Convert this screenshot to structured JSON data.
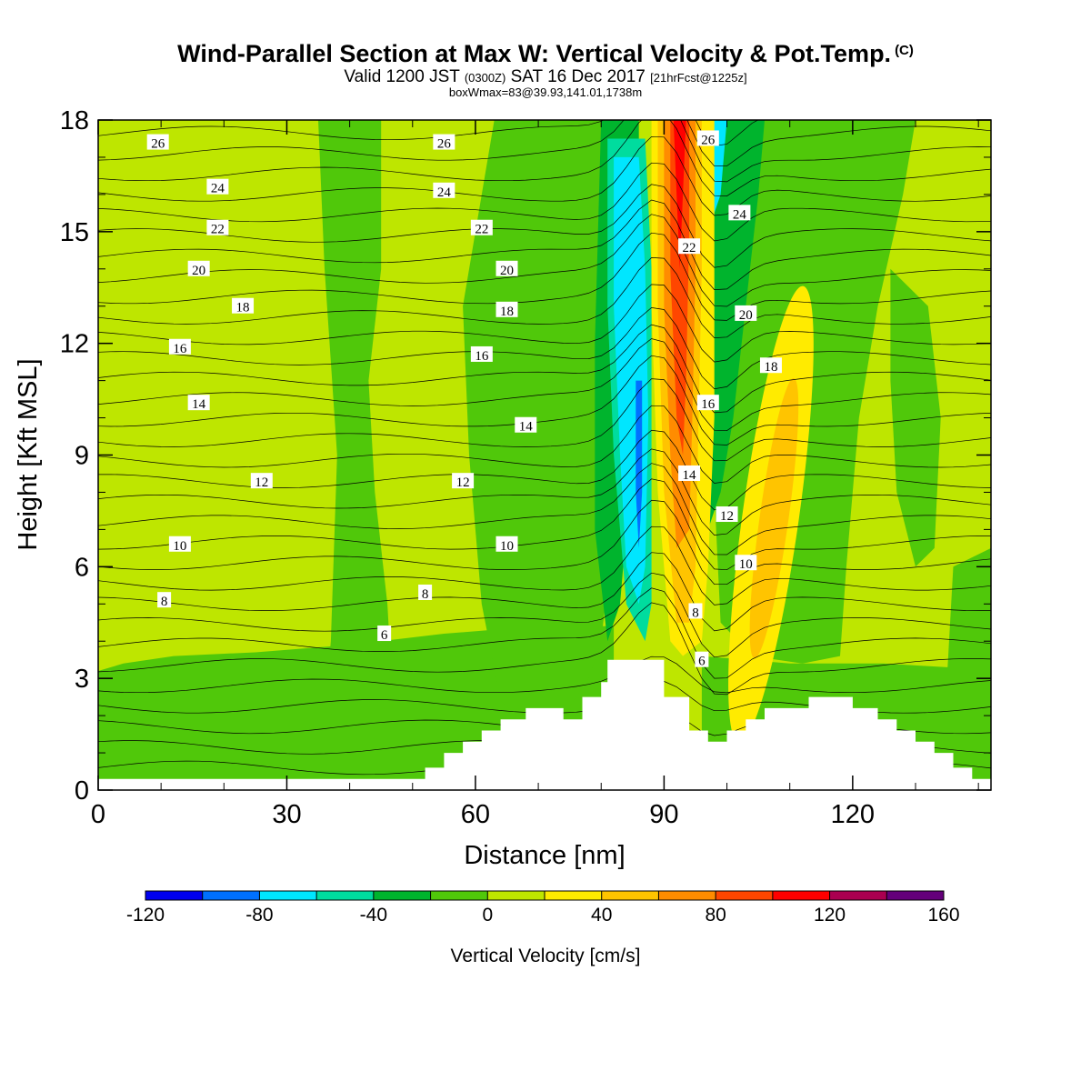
{
  "header": {
    "title": "Wind-Parallel Section at Max W: Vertical Velocity & Pot.Temp.",
    "copyright_mark": "(C)",
    "valid_prefix": "Valid 1200 JST",
    "valid_utc": "(0300Z)",
    "valid_date": "SAT 16 Dec 2017",
    "forecast_tag": "[21hrFcst@1225z]",
    "box_wmax": "boxWmax=83@39.93,141.01,1738m"
  },
  "chart_data": {
    "type": "heatmap",
    "xlabel": "Distance [nm]",
    "ylabel": "Height [Kft MSL]",
    "xlim": [
      0,
      142
    ],
    "ylim": [
      0,
      18
    ],
    "xticks": [
      0,
      30,
      60,
      90,
      120
    ],
    "yticks": [
      0,
      3,
      6,
      9,
      12,
      15,
      18
    ],
    "colorbar": {
      "label": "Vertical Velocity [cm/s]",
      "range": [
        -120,
        160
      ],
      "step": 20,
      "tick_values": [
        -120,
        -80,
        -40,
        0,
        40,
        80,
        120,
        160
      ],
      "tick_labels": [
        "-120",
        "-80",
        "-40",
        "0",
        "40",
        "80",
        "120",
        "160"
      ],
      "colors": [
        "#0000ee",
        "#0070ff",
        "#00e6ff",
        "#00dc9e",
        "#00b42d",
        "#50c80a",
        "#bee600",
        "#ffeb00",
        "#ffc400",
        "#ff8c00",
        "#ff4600",
        "#ff0000",
        "#aa0050",
        "#64007a"
      ]
    },
    "terrain_profile": [
      [
        0,
        0.3
      ],
      [
        52,
        0.3
      ],
      [
        52,
        0.6
      ],
      [
        55,
        0.6
      ],
      [
        55,
        1.0
      ],
      [
        58,
        1.0
      ],
      [
        58,
        1.3
      ],
      [
        61,
        1.3
      ],
      [
        61,
        1.6
      ],
      [
        64,
        1.6
      ],
      [
        64,
        1.9
      ],
      [
        68,
        1.9
      ],
      [
        68,
        2.2
      ],
      [
        74,
        2.2
      ],
      [
        74,
        1.9
      ],
      [
        77,
        1.9
      ],
      [
        77,
        2.5
      ],
      [
        80,
        2.5
      ],
      [
        80,
        2.9
      ],
      [
        81,
        2.9
      ],
      [
        81,
        3.5
      ],
      [
        90,
        3.5
      ],
      [
        90,
        2.5
      ],
      [
        94,
        2.5
      ],
      [
        94,
        1.6
      ],
      [
        97,
        1.6
      ],
      [
        97,
        1.3
      ],
      [
        100,
        1.3
      ],
      [
        100,
        1.6
      ],
      [
        103,
        1.6
      ],
      [
        103,
        1.9
      ],
      [
        106,
        1.9
      ],
      [
        106,
        2.2
      ],
      [
        113,
        2.2
      ],
      [
        113,
        2.5
      ],
      [
        120,
        2.5
      ],
      [
        120,
        2.2
      ],
      [
        124,
        2.2
      ],
      [
        124,
        1.9
      ],
      [
        127,
        1.9
      ],
      [
        127,
        1.6
      ],
      [
        130,
        1.6
      ],
      [
        130,
        1.3
      ],
      [
        133,
        1.3
      ],
      [
        133,
        1.0
      ],
      [
        136,
        1.0
      ],
      [
        136,
        0.6
      ],
      [
        139,
        0.6
      ],
      [
        139,
        0.3
      ],
      [
        142,
        0.3
      ]
    ],
    "theta_contour_labels": [
      {
        "text": "26",
        "x": 9.5,
        "y": 17.4
      },
      {
        "text": "24",
        "x": 19,
        "y": 16.2
      },
      {
        "text": "22",
        "x": 19,
        "y": 15.1
      },
      {
        "text": "20",
        "x": 16,
        "y": 14.0
      },
      {
        "text": "18",
        "x": 23,
        "y": 13.0
      },
      {
        "text": "16",
        "x": 13,
        "y": 11.9
      },
      {
        "text": "14",
        "x": 16,
        "y": 10.4
      },
      {
        "text": "12",
        "x": 26,
        "y": 8.3
      },
      {
        "text": "10",
        "x": 13,
        "y": 6.6
      },
      {
        "text": "8",
        "x": 10.5,
        "y": 5.1
      },
      {
        "text": "26",
        "x": 55,
        "y": 17.4
      },
      {
        "text": "24",
        "x": 55,
        "y": 16.1
      },
      {
        "text": "22",
        "x": 61,
        "y": 15.1
      },
      {
        "text": "20",
        "x": 65,
        "y": 14.0
      },
      {
        "text": "18",
        "x": 65,
        "y": 12.9
      },
      {
        "text": "16",
        "x": 61,
        "y": 11.7
      },
      {
        "text": "14",
        "x": 68,
        "y": 9.8
      },
      {
        "text": "12",
        "x": 58,
        "y": 8.3
      },
      {
        "text": "10",
        "x": 65,
        "y": 6.6
      },
      {
        "text": "8",
        "x": 52,
        "y": 5.3
      },
      {
        "text": "6",
        "x": 45.5,
        "y": 4.2
      },
      {
        "text": "26",
        "x": 97,
        "y": 17.5
      },
      {
        "text": "24",
        "x": 102,
        "y": 15.5
      },
      {
        "text": "22",
        "x": 94,
        "y": 14.6
      },
      {
        "text": "20",
        "x": 103,
        "y": 12.8
      },
      {
        "text": "18",
        "x": 107,
        "y": 11.4
      },
      {
        "text": "16",
        "x": 97,
        "y": 10.4
      },
      {
        "text": "14",
        "x": 94,
        "y": 8.5
      },
      {
        "text": "12",
        "x": 100,
        "y": 7.4
      },
      {
        "text": "10",
        "x": 103,
        "y": 6.1
      },
      {
        "text": "8",
        "x": 95,
        "y": 4.8
      },
      {
        "text": "6",
        "x": 96,
        "y": 3.5
      }
    ]
  }
}
